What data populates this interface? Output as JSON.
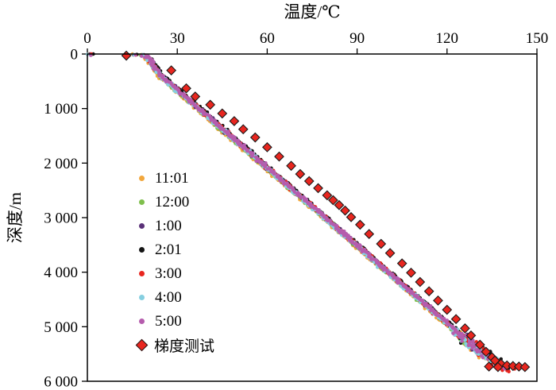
{
  "chart_data": {
    "type": "scatter",
    "title": "温度/℃",
    "ylabel": "深度/m",
    "x_axis": {
      "label": "温度/℃",
      "position": "top",
      "min": 0,
      "max": 150,
      "ticks": [
        0,
        30,
        60,
        90,
        120,
        150
      ],
      "tick_labels": [
        "0",
        "30",
        "60",
        "90",
        "120",
        "150"
      ]
    },
    "y_axis": {
      "label": "深度/m",
      "inverted": true,
      "min": 0,
      "max": 6000,
      "ticks": [
        0,
        1000,
        2000,
        3000,
        4000,
        5000,
        6000
      ],
      "tick_labels": [
        "0",
        "1 000",
        "2 000",
        "3 000",
        "4 000",
        "5 000",
        "6 000"
      ]
    },
    "grid": "off",
    "legend_position": "inside-left",
    "profile_anchors_temp_depth": [
      [
        1,
        0
      ],
      [
        12,
        6
      ],
      [
        17,
        14
      ],
      [
        19,
        28
      ],
      [
        20,
        55
      ],
      [
        21,
        110
      ],
      [
        22,
        210
      ],
      [
        23.5,
        320
      ],
      [
        25,
        430
      ],
      [
        28,
        560
      ],
      [
        30,
        660
      ],
      [
        34,
        850
      ],
      [
        38,
        1040
      ],
      [
        42,
        1230
      ],
      [
        46,
        1420
      ],
      [
        50,
        1610
      ],
      [
        54,
        1800
      ],
      [
        58,
        1990
      ],
      [
        62,
        2180
      ],
      [
        66,
        2370
      ],
      [
        70,
        2560
      ],
      [
        74,
        2750
      ],
      [
        78,
        2940
      ],
      [
        82,
        3130
      ],
      [
        86,
        3320
      ],
      [
        90,
        3510
      ],
      [
        94,
        3700
      ],
      [
        98,
        3890
      ],
      [
        102,
        4080
      ],
      [
        106,
        4270
      ],
      [
        110,
        4460
      ],
      [
        114,
        4650
      ],
      [
        118,
        4840
      ],
      [
        122,
        5030
      ],
      [
        126,
        5220
      ],
      [
        130,
        5410
      ],
      [
        133,
        5530
      ],
      [
        136,
        5650
      ],
      [
        138,
        5730
      ],
      [
        140,
        5810
      ]
    ],
    "series": [
      {
        "name": "11:01",
        "color": "#f2a73d",
        "marker": "dot",
        "temp_offset": -0.6,
        "max_depth": 5650
      },
      {
        "name": "12:00",
        "color": "#7fbf4d",
        "marker": "dot",
        "temp_offset": -0.3,
        "max_depth": 5680
      },
      {
        "name": "1:00",
        "color": "#5a3178",
        "marker": "dot",
        "temp_offset": 0.2,
        "max_depth": 5750
      },
      {
        "name": "2:01",
        "color": "#141414",
        "marker": "dot",
        "temp_offset": 0.5,
        "max_depth": 5800
      },
      {
        "name": "3:00",
        "color": "#e8261f",
        "marker": "dot",
        "temp_offset": 0.0,
        "max_depth": 5820
      },
      {
        "name": "4:00",
        "color": "#86cfe0",
        "marker": "dot",
        "temp_offset": -0.2,
        "max_depth": 5700
      },
      {
        "name": "5:00",
        "color": "#b55cad",
        "marker": "dot",
        "temp_offset": 0.1,
        "max_depth": 5760
      }
    ],
    "gradient_test": {
      "name": "梯度测试",
      "color": "#e8261f",
      "edge_color": "#1a1a1a",
      "marker": "diamond",
      "points_temp_depth": [
        [
          13,
          30
        ],
        [
          28,
          300
        ],
        [
          33,
          630
        ],
        [
          36,
          780
        ],
        [
          41,
          930
        ],
        [
          45,
          1090
        ],
        [
          49,
          1230
        ],
        [
          52,
          1380
        ],
        [
          56,
          1530
        ],
        [
          60,
          1710
        ],
        [
          64,
          1880
        ],
        [
          68,
          2050
        ],
        [
          71,
          2200
        ],
        [
          74,
          2330
        ],
        [
          77,
          2460
        ],
        [
          80,
          2590
        ],
        [
          82,
          2680
        ],
        [
          84,
          2770
        ],
        [
          86,
          2870
        ],
        [
          88,
          2990
        ],
        [
          91,
          3130
        ],
        [
          94,
          3300
        ],
        [
          98,
          3480
        ],
        [
          101,
          3650
        ],
        [
          105,
          3840
        ],
        [
          108,
          4010
        ],
        [
          111,
          4180
        ],
        [
          114,
          4350
        ],
        [
          117,
          4520
        ],
        [
          120,
          4690
        ],
        [
          123,
          4860
        ],
        [
          126,
          5030
        ],
        [
          128,
          5160
        ],
        [
          131,
          5330
        ],
        [
          133,
          5460
        ],
        [
          135,
          5560
        ],
        [
          136,
          5620
        ],
        [
          138,
          5680
        ],
        [
          140,
          5710
        ],
        [
          142,
          5720
        ],
        [
          144,
          5730
        ],
        [
          146,
          5740
        ],
        [
          137,
          5740
        ],
        [
          134,
          5730
        ]
      ]
    }
  }
}
